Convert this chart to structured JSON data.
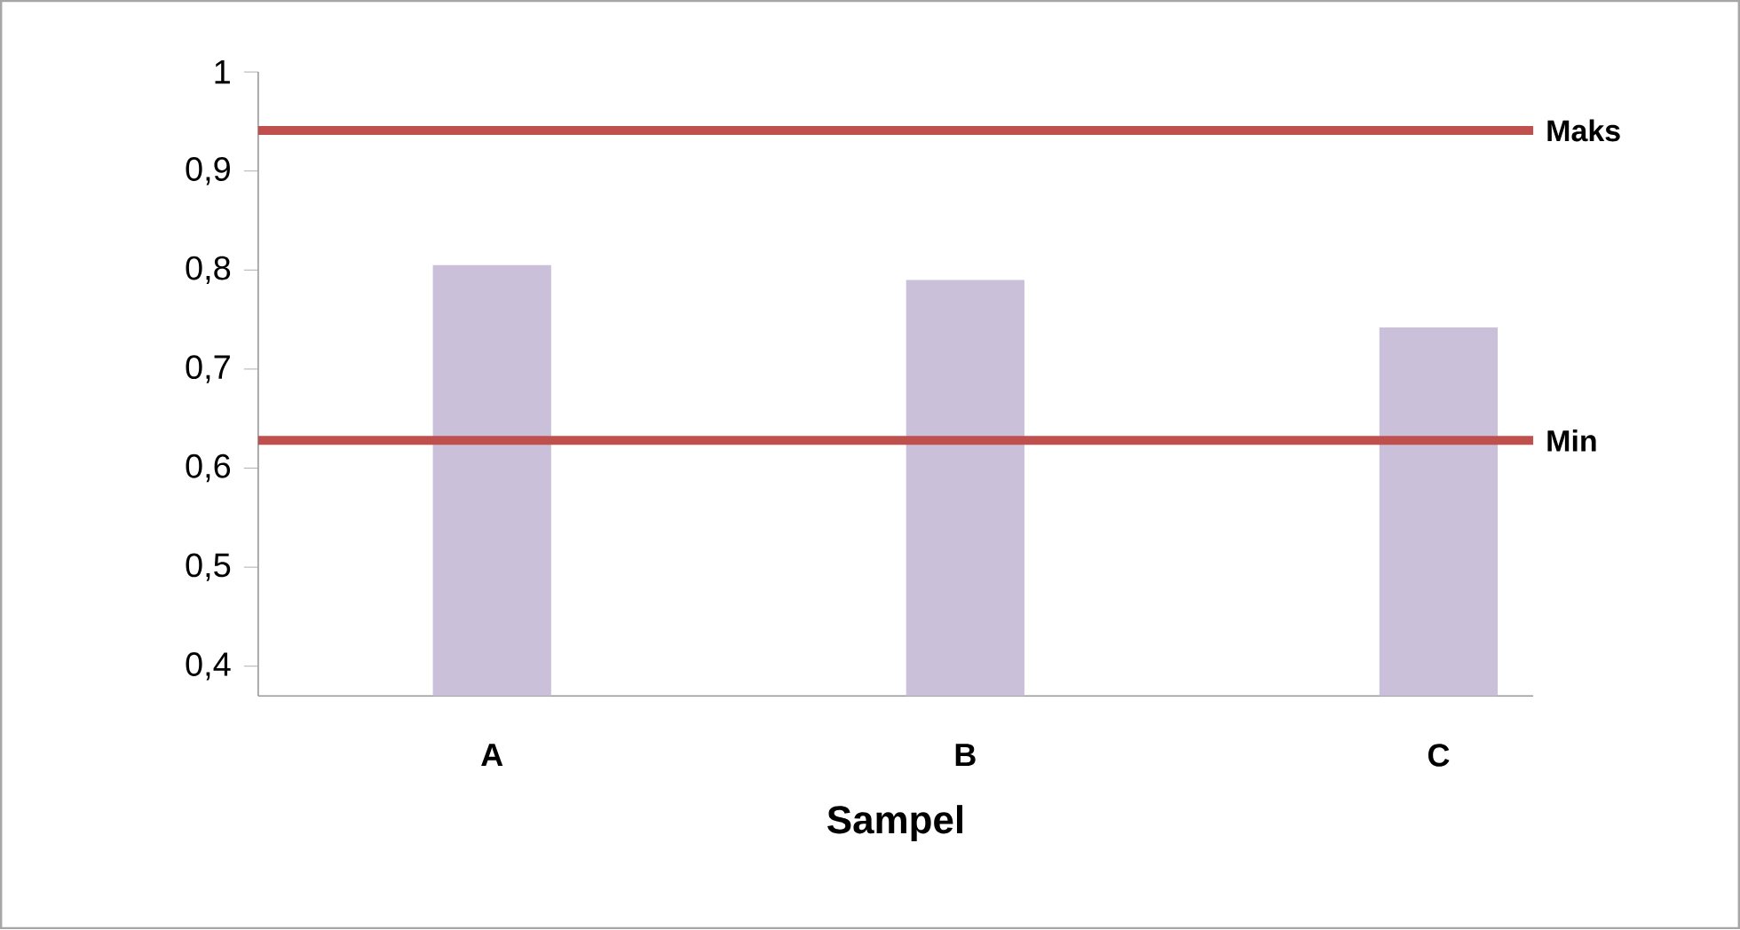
{
  "chart_data": {
    "type": "bar",
    "xlabel": "Sampel",
    "categories": [
      "A",
      "B",
      "C"
    ],
    "values": [
      0.805,
      0.79,
      0.742
    ],
    "color": "#cbc0da",
    "ylim": [
      0.37,
      1
    ],
    "yticks": [
      {
        "value": 0.4,
        "label": "0,4"
      },
      {
        "value": 0.5,
        "label": "0,5"
      },
      {
        "value": 0.6,
        "label": "0,6"
      },
      {
        "value": 0.7,
        "label": "0,7"
      },
      {
        "value": 0.8,
        "label": "0,8"
      },
      {
        "value": 0.9,
        "label": "0,9"
      },
      1
    ],
    "ref_lines": [
      {
        "axis": "y",
        "value": 0.941,
        "label": "Maks",
        "color": "#c0504d"
      },
      {
        "axis": "y",
        "value": 0.628,
        "label": "Min",
        "color": "#c0504d"
      }
    ],
    "grid": false
  }
}
